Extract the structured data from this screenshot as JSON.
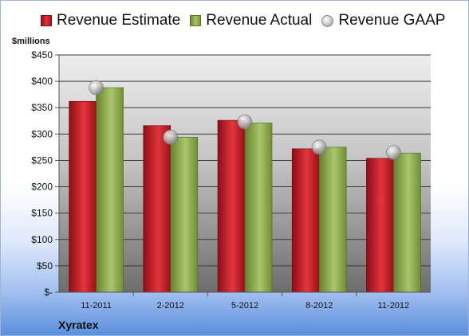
{
  "legend": {
    "estimate": "Revenue Estimate",
    "actual": "Revenue Actual",
    "gaap": "Revenue GAAP"
  },
  "unit_label": "$millions",
  "company": "Xyratex",
  "colors": {
    "estimate": "#c8232b",
    "actual": "#8aaa4c",
    "gaap": "#b0b0b0"
  },
  "chart_data": {
    "type": "bar",
    "categories": [
      "11-2011",
      "2-2012",
      "5-2012",
      "8-2012",
      "11-2012"
    ],
    "series": [
      {
        "name": "Revenue Estimate",
        "values": [
          362,
          316,
          326,
          272,
          254
        ]
      },
      {
        "name": "Revenue Actual",
        "values": [
          388,
          294,
          321,
          275,
          264
        ]
      },
      {
        "name": "Revenue GAAP",
        "values": [
          388,
          294,
          323,
          275,
          265
        ],
        "style": "marker"
      }
    ],
    "ylabel": "$millions",
    "ylim": [
      0,
      450
    ],
    "yticks": [
      0,
      50,
      100,
      150,
      200,
      250,
      300,
      350,
      400,
      450
    ],
    "ytick_labels": [
      "$-",
      "$50",
      "$100",
      "$150",
      "$200",
      "$250",
      "$300",
      "$350",
      "$400",
      "$450"
    ],
    "grid": true,
    "legend_position": "top"
  }
}
